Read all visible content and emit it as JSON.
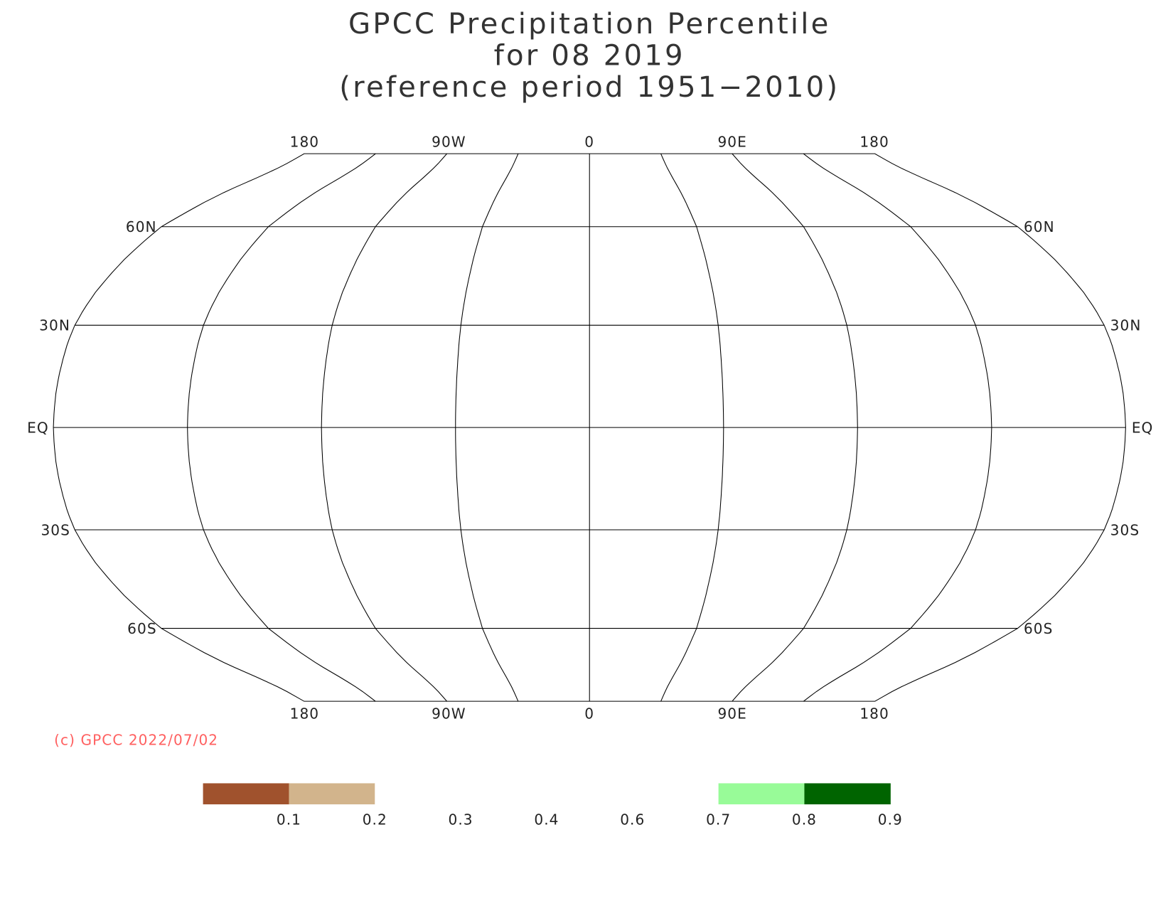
{
  "title": [
    "GPCC Precipitation Percentile",
    "for 08 2019",
    "(reference period 1951−2010)"
  ],
  "map": {
    "lon_labels_top": [
      "180",
      "90W",
      "0",
      "90E",
      "180"
    ],
    "lon_labels_bottom": [
      "180",
      "90W",
      "0",
      "90E",
      "180"
    ],
    "lat_labels_left": [
      "60N",
      "30N",
      "EQ",
      "30S",
      "60S"
    ],
    "lat_labels_right": [
      "60N",
      "30N",
      "EQ",
      "30S",
      "60S"
    ]
  },
  "credit": "(c) GPCC 2022/07/02",
  "legend": {
    "colors": [
      "#a0522d",
      "#d2b48c",
      "#ffffff",
      "#ffffff",
      "#ffffff",
      "#ffffff",
      "#98fb98",
      "#006400"
    ],
    "ticks": [
      0.1,
      0.2,
      0.3,
      0.4,
      0.6,
      0.7,
      0.8,
      0.9
    ]
  }
}
